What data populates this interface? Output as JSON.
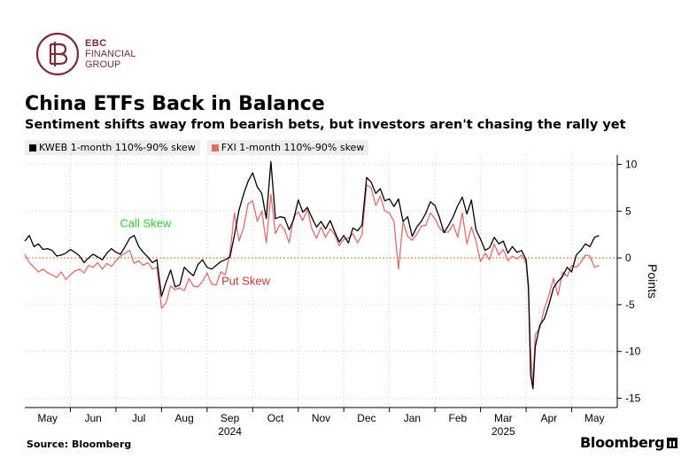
{
  "brand": {
    "line1": "EBC",
    "line2": "FINANCIAL",
    "line3": "GROUP",
    "color": "#7b2d35"
  },
  "source": "Source: Bloomberg",
  "bloomberg_label": "Bloomberg",
  "chart_data": {
    "type": "line",
    "title": "China ETFs Back in Balance",
    "subtitle": "Sentiment shifts away from bearish bets, but investors aren't chasing the rally yet",
    "ylabel": "Points",
    "ylim": [
      -16,
      11
    ],
    "yticks": [
      10,
      5,
      0,
      -5,
      -10,
      -15
    ],
    "ytick_labels": [
      "10",
      "5",
      "0",
      "-5",
      "-10",
      "-15"
    ],
    "month_labels": [
      "May",
      "Jun",
      "Jul",
      "Aug",
      "Sep",
      "Oct",
      "Nov",
      "Dec",
      "Jan",
      "Feb",
      "Mar",
      "Apr",
      "May"
    ],
    "month_index": [
      0.5,
      1.5,
      2.5,
      3.5,
      4.5,
      5.5,
      6.5,
      7.5,
      8.5,
      9.5,
      10.5,
      11.5,
      12.5
    ],
    "year_labels": [
      {
        "label": "2024",
        "at": 4.5
      },
      {
        "label": "2025",
        "at": 10.5
      }
    ],
    "xlim": [
      0,
      13.0
    ],
    "reference_line": 0,
    "annotations": [
      {
        "text": "Call Skew",
        "x": 2.65,
        "y": 3.3,
        "color": "#2ecc2e"
      },
      {
        "text": "Put Skew",
        "x": 4.85,
        "y": -2.9,
        "color": "#c0392b"
      }
    ],
    "series": [
      {
        "name": "KWEB 1-month 110%-90% skew",
        "color": "#000000",
        "x": [
          0,
          0.1,
          0.2,
          0.3,
          0.4,
          0.5,
          0.6,
          0.7,
          0.8,
          0.9,
          1.0,
          1.1,
          1.2,
          1.3,
          1.4,
          1.5,
          1.6,
          1.7,
          1.8,
          1.9,
          2.0,
          2.1,
          2.2,
          2.3,
          2.4,
          2.5,
          2.6,
          2.7,
          2.8,
          2.9,
          3.0,
          3.1,
          3.2,
          3.3,
          3.4,
          3.5,
          3.6,
          3.7,
          3.8,
          3.9,
          4.0,
          4.1,
          4.2,
          4.3,
          4.4,
          4.5,
          4.6,
          4.7,
          4.8,
          4.9,
          5.0,
          5.1,
          5.2,
          5.3,
          5.4,
          5.5,
          5.6,
          5.7,
          5.8,
          5.9,
          6.0,
          6.1,
          6.2,
          6.3,
          6.4,
          6.5,
          6.6,
          6.7,
          6.8,
          6.9,
          7.0,
          7.1,
          7.2,
          7.3,
          7.4,
          7.5,
          7.6,
          7.7,
          7.8,
          7.9,
          8.0,
          8.1,
          8.2,
          8.3,
          8.4,
          8.5,
          8.6,
          8.7,
          8.8,
          8.9,
          9.0,
          9.1,
          9.2,
          9.3,
          9.4,
          9.5,
          9.6,
          9.7,
          9.8,
          9.9,
          10.0,
          10.1,
          10.2,
          10.3,
          10.4,
          10.5,
          10.6,
          10.7,
          10.8,
          10.9,
          11.0,
          11.05,
          11.1,
          11.15,
          11.2,
          11.3,
          11.4,
          11.5,
          11.6,
          11.7,
          11.8,
          11.9,
          12.0,
          12.1,
          12.2,
          12.3,
          12.4,
          12.5,
          12.6
        ],
        "y": [
          1.8,
          2.4,
          1.2,
          1.5,
          0.9,
          1.0,
          0.8,
          0.2,
          0.3,
          0.5,
          0.9,
          0.6,
          0.2,
          -0.5,
          0.0,
          0.4,
          0.1,
          -0.2,
          0.5,
          1.0,
          0.6,
          0.4,
          1.2,
          2.1,
          2.4,
          1.2,
          0.6,
          0.1,
          -0.5,
          -0.2,
          -4.1,
          -2.6,
          -1.3,
          -3.1,
          -2.9,
          -1.0,
          -1.5,
          -1.9,
          -0.7,
          -0.2,
          -1.0,
          -1.2,
          -0.8,
          -0.4,
          -0.2,
          0.1,
          2.4,
          5.1,
          6.8,
          8.2,
          9.1,
          7.6,
          6.9,
          4.2,
          10.3,
          4.2,
          4.4,
          4.3,
          3.0,
          4.1,
          6.2,
          4.9,
          5.4,
          4.3,
          3.3,
          3.9,
          3.1,
          4.0,
          2.8,
          1.7,
          2.4,
          1.6,
          3.2,
          2.9,
          3.5,
          8.6,
          8.1,
          6.9,
          7.4,
          6.1,
          6.3,
          5.5,
          6.3,
          3.9,
          4.4,
          2.3,
          3.3,
          3.9,
          4.8,
          6.0,
          5.6,
          4.3,
          2.7,
          3.5,
          4.4,
          5.6,
          6.5,
          4.7,
          6.2,
          3.0,
          2.0,
          0.8,
          1.1,
          2.2,
          1.5,
          1.8,
          0.5,
          1.2,
          0.6,
          0.8,
          -0.2,
          -3.0,
          -12.5,
          -14.0,
          -9.5,
          -7.2,
          -6.5,
          -5.0,
          -3.2,
          -2.5,
          -2.0,
          -1.0,
          -1.5,
          0.3,
          0.8,
          1.5,
          1.2,
          2.2,
          2.4
        ]
      },
      {
        "name": "FXI 1-month 110%-90% skew",
        "color": "#e06c6c",
        "x": [
          0,
          0.1,
          0.2,
          0.3,
          0.4,
          0.5,
          0.6,
          0.7,
          0.8,
          0.9,
          1.0,
          1.1,
          1.2,
          1.3,
          1.4,
          1.5,
          1.6,
          1.7,
          1.8,
          1.9,
          2.0,
          2.1,
          2.2,
          2.3,
          2.4,
          2.5,
          2.6,
          2.7,
          2.8,
          2.9,
          3.0,
          3.1,
          3.2,
          3.3,
          3.4,
          3.5,
          3.6,
          3.7,
          3.8,
          3.9,
          4.0,
          4.1,
          4.2,
          4.3,
          4.4,
          4.5,
          4.6,
          4.7,
          4.8,
          4.9,
          5.0,
          5.1,
          5.2,
          5.3,
          5.4,
          5.5,
          5.6,
          5.7,
          5.8,
          5.9,
          6.0,
          6.1,
          6.2,
          6.3,
          6.4,
          6.5,
          6.6,
          6.7,
          6.8,
          6.9,
          7.0,
          7.1,
          7.2,
          7.3,
          7.4,
          7.5,
          7.6,
          7.7,
          7.8,
          7.9,
          8.0,
          8.1,
          8.2,
          8.3,
          8.4,
          8.5,
          8.6,
          8.7,
          8.8,
          8.9,
          9.0,
          9.1,
          9.2,
          9.3,
          9.4,
          9.5,
          9.6,
          9.7,
          9.8,
          9.9,
          10.0,
          10.1,
          10.2,
          10.3,
          10.4,
          10.5,
          10.6,
          10.7,
          10.8,
          10.9,
          11.0,
          11.05,
          11.1,
          11.15,
          11.2,
          11.3,
          11.4,
          11.5,
          11.6,
          11.7,
          11.8,
          11.9,
          12.0,
          12.1,
          12.2,
          12.3,
          12.4,
          12.5,
          12.6
        ],
        "y": [
          0.4,
          -0.5,
          -1.0,
          -1.5,
          -1.2,
          -1.6,
          -1.8,
          -2.1,
          -1.5,
          -2.3,
          -1.8,
          -1.4,
          -1.2,
          -1.6,
          -0.8,
          -1.0,
          -0.5,
          -1.2,
          -0.6,
          -0.9,
          -0.3,
          0.2,
          0.5,
          0.8,
          -0.6,
          -0.3,
          -0.8,
          -0.5,
          -1.2,
          -1.0,
          -5.4,
          -4.8,
          -3.0,
          -3.4,
          -3.2,
          -3.5,
          -2.2,
          -3.0,
          -3.1,
          -2.5,
          -1.6,
          -2.8,
          -2.9,
          -1.5,
          -1.8,
          0.5,
          4.8,
          1.8,
          3.2,
          5.8,
          6.1,
          3.9,
          5.0,
          1.6,
          6.8,
          2.6,
          3.6,
          3.0,
          1.6,
          4.4,
          4.9,
          4.0,
          5.2,
          3.1,
          2.1,
          3.3,
          2.2,
          3.1,
          2.5,
          1.3,
          2.0,
          2.1,
          2.6,
          1.6,
          2.5,
          7.8,
          7.5,
          5.6,
          6.6,
          5.0,
          4.8,
          3.9,
          -1.2,
          3.9,
          2.3,
          1.9,
          2.5,
          3.4,
          3.5,
          4.8,
          4.2,
          3.2,
          2.7,
          2.8,
          3.6,
          2.2,
          4.8,
          1.5,
          3.3,
          1.8,
          -0.4,
          0.5,
          -0.2,
          1.5,
          0.3,
          0.9,
          -0.3,
          0.2,
          -0.1,
          0.3,
          -0.5,
          -3.5,
          -10.2,
          -13.5,
          -8.2,
          -7.5,
          -5.4,
          -4.0,
          -2.2,
          -4.0,
          -1.5,
          -2.0,
          -0.8,
          -1.0,
          -0.5,
          0.3,
          0.2,
          -1.0,
          -0.8
        ]
      }
    ]
  }
}
